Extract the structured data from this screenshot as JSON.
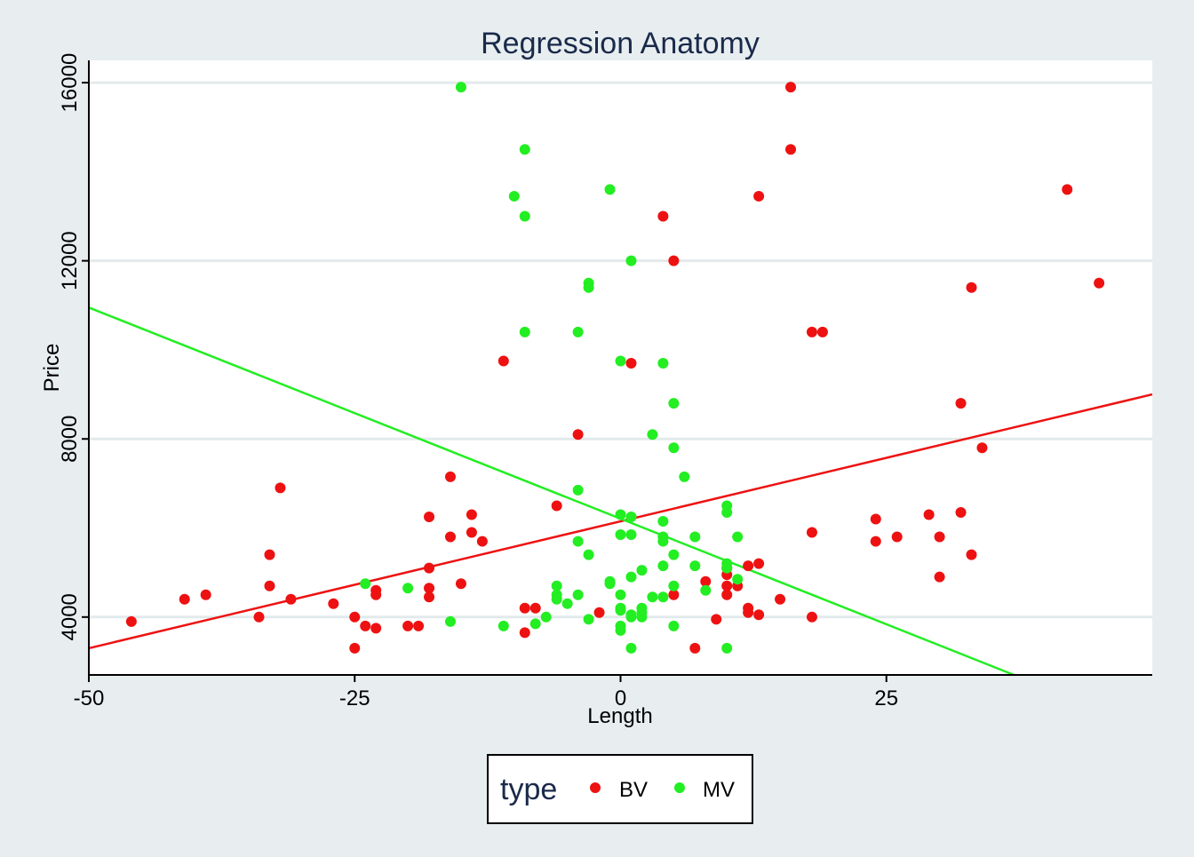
{
  "chart_data": {
    "type": "scatter",
    "title": "Regression Anatomy",
    "xlabel": "Length",
    "ylabel": "Price",
    "xlim": [
      -50,
      50
    ],
    "ylim": [
      2700,
      16500
    ],
    "xticks": [
      -50,
      -25,
      0,
      25
    ],
    "yticks": [
      4000,
      8000,
      12000,
      16000
    ],
    "xtick_labels": [
      "-50",
      "-25",
      "0",
      "25"
    ],
    "ytick_labels": [
      "4000",
      "8000",
      "12000",
      "16000"
    ],
    "grid": "horizontal",
    "legend": {
      "title": "type",
      "placement": "bottom-center"
    },
    "series": [
      {
        "name": "BV",
        "color": "#ee1111",
        "points": [
          [
            -46,
            3900
          ],
          [
            -41,
            4400
          ],
          [
            -39,
            4500
          ],
          [
            -34,
            4000
          ],
          [
            -33,
            5400
          ],
          [
            -33,
            4700
          ],
          [
            -32,
            6900
          ],
          [
            -31,
            4400
          ],
          [
            -27,
            4300
          ],
          [
            -25,
            4000
          ],
          [
            -25,
            3300
          ],
          [
            -24,
            3800
          ],
          [
            -23,
            4600
          ],
          [
            -23,
            4500
          ],
          [
            -23,
            3750
          ],
          [
            -20,
            3800
          ],
          [
            -19,
            3800
          ],
          [
            -18,
            6250
          ],
          [
            -18,
            5100
          ],
          [
            -18,
            4650
          ],
          [
            -18,
            4450
          ],
          [
            -16,
            5800
          ],
          [
            -16,
            7150
          ],
          [
            -15,
            4750
          ],
          [
            -14,
            5900
          ],
          [
            -14,
            6300
          ],
          [
            -13,
            5700
          ],
          [
            -11,
            9750
          ],
          [
            -9,
            4200
          ],
          [
            -9,
            3650
          ],
          [
            -8,
            4200
          ],
          [
            -6,
            6500
          ],
          [
            -4,
            8100
          ],
          [
            -2,
            4100
          ],
          [
            1,
            9700
          ],
          [
            4,
            13000
          ],
          [
            5,
            12000
          ],
          [
            5,
            4500
          ],
          [
            7,
            3300
          ],
          [
            8,
            4800
          ],
          [
            9,
            3950
          ],
          [
            10,
            5100
          ],
          [
            10,
            4950
          ],
          [
            10,
            4700
          ],
          [
            10,
            4500
          ],
          [
            11,
            4700
          ],
          [
            12,
            5150
          ],
          [
            12,
            4200
          ],
          [
            12,
            4100
          ],
          [
            13,
            5200
          ],
          [
            13,
            4050
          ],
          [
            13,
            13450
          ],
          [
            15,
            4400
          ],
          [
            16,
            15900
          ],
          [
            16,
            14500
          ],
          [
            18,
            10400
          ],
          [
            18,
            5900
          ],
          [
            18,
            4000
          ],
          [
            19,
            10400
          ],
          [
            24,
            6200
          ],
          [
            24,
            5700
          ],
          [
            26,
            5800
          ],
          [
            29,
            6300
          ],
          [
            30,
            5800
          ],
          [
            30,
            4900
          ],
          [
            32,
            8800
          ],
          [
            32,
            6350
          ],
          [
            33,
            11400
          ],
          [
            33,
            5400
          ],
          [
            34,
            7800
          ],
          [
            42,
            13600
          ],
          [
            45,
            11500
          ]
        ]
      },
      {
        "name": "MV",
        "color": "#22ee22",
        "points": [
          [
            -24,
            4750
          ],
          [
            -20,
            4650
          ],
          [
            -16,
            3900
          ],
          [
            -15,
            15900
          ],
          [
            -11,
            3800
          ],
          [
            -10,
            13450
          ],
          [
            -9,
            13000
          ],
          [
            -9,
            10400
          ],
          [
            -9,
            14500
          ],
          [
            -8,
            3850
          ],
          [
            -7,
            4000
          ],
          [
            -6,
            4400
          ],
          [
            -6,
            4700
          ],
          [
            -6,
            4500
          ],
          [
            -5,
            4300
          ],
          [
            -4,
            10400
          ],
          [
            -4,
            6850
          ],
          [
            -4,
            5700
          ],
          [
            -4,
            4500
          ],
          [
            -3,
            11500
          ],
          [
            -3,
            11400
          ],
          [
            -3,
            5400
          ],
          [
            -3,
            3950
          ],
          [
            -1,
            13600
          ],
          [
            -1,
            4800
          ],
          [
            -1,
            4750
          ],
          [
            0,
            9750
          ],
          [
            0,
            6300
          ],
          [
            0,
            5850
          ],
          [
            0,
            4200
          ],
          [
            0,
            4150
          ],
          [
            0,
            3800
          ],
          [
            0,
            3700
          ],
          [
            0,
            4500
          ],
          [
            1,
            5850
          ],
          [
            1,
            12000
          ],
          [
            1,
            6250
          ],
          [
            1,
            4900
          ],
          [
            1,
            4050
          ],
          [
            1,
            4000
          ],
          [
            1,
            3300
          ],
          [
            2,
            5050
          ],
          [
            2,
            4200
          ],
          [
            2,
            4100
          ],
          [
            2,
            4000
          ],
          [
            3,
            4450
          ],
          [
            3,
            8100
          ],
          [
            4,
            9700
          ],
          [
            4,
            6150
          ],
          [
            4,
            5800
          ],
          [
            4,
            5700
          ],
          [
            4,
            5150
          ],
          [
            4,
            4450
          ],
          [
            5,
            8800
          ],
          [
            5,
            7800
          ],
          [
            5,
            5400
          ],
          [
            5,
            4700
          ],
          [
            5,
            3800
          ],
          [
            6,
            7150
          ],
          [
            7,
            5800
          ],
          [
            7,
            5150
          ],
          [
            8,
            4600
          ],
          [
            10,
            5200
          ],
          [
            10,
            5100
          ],
          [
            10,
            3300
          ],
          [
            10,
            6350
          ],
          [
            10,
            6500
          ],
          [
            11,
            4850
          ],
          [
            11,
            5800
          ]
        ]
      }
    ],
    "fit_lines": [
      {
        "series": "BV",
        "color": "#ee1111",
        "x": [
          -50,
          50
        ],
        "y": [
          3300,
          9000
        ]
      },
      {
        "series": "MV",
        "color": "#22ee22",
        "x": [
          -50,
          37
        ],
        "y": [
          10950,
          2700
        ]
      }
    ]
  }
}
